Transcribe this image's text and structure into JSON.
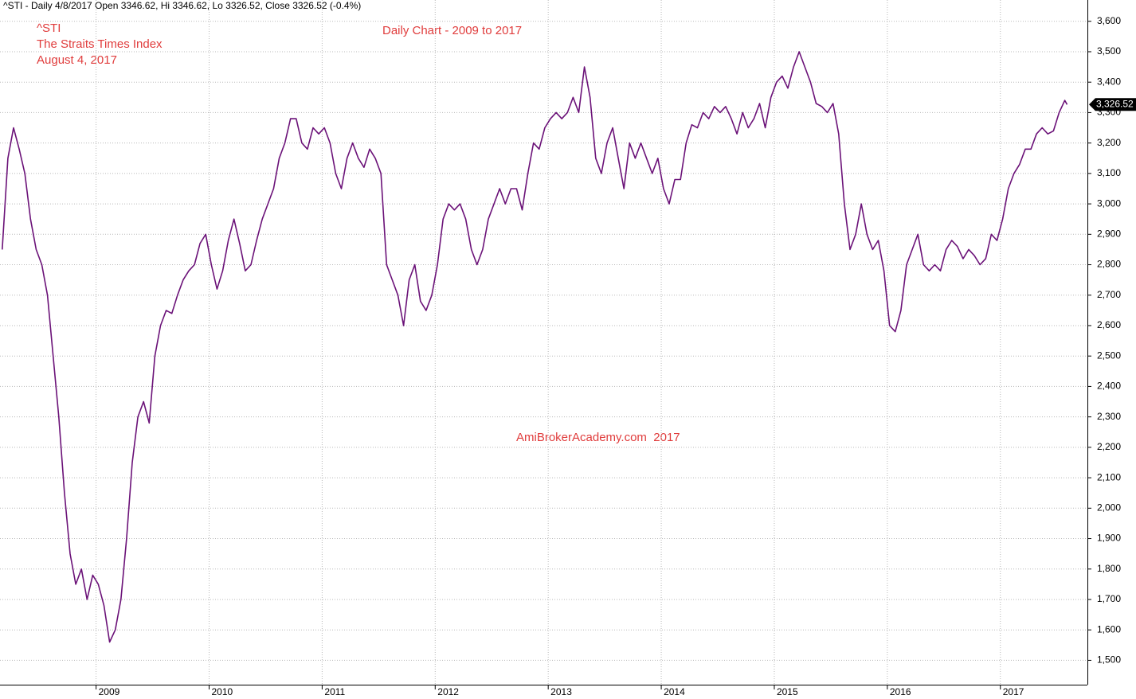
{
  "chart_data": {
    "type": "line",
    "header": "^STI - Daily 4/8/2017 Open 3346.62, Hi 3346.62, Lo 3326.52, Close 3326.52 (-0.4%)",
    "title": "Daily Chart - 2009 to 2017",
    "annotations": [
      "^STI",
      "The Straits Times Index",
      "August 4, 2017"
    ],
    "watermark": "AmiBrokerAcademy.com  2017",
    "color": "#6b1278",
    "grid": true,
    "xlim": [
      2008.15,
      2017.77
    ],
    "xticks": [
      2009,
      2010,
      2011,
      2012,
      2013,
      2014,
      2015,
      2016,
      2017
    ],
    "ylim": [
      1420,
      3670
    ],
    "yticks": [
      {
        "value": 1500,
        "label": "1,500"
      },
      {
        "value": 1600,
        "label": "1,600"
      },
      {
        "value": 1700,
        "label": "1,700"
      },
      {
        "value": 1800,
        "label": "1,800"
      },
      {
        "value": 1900,
        "label": "1,900"
      },
      {
        "value": 2000,
        "label": "2,000"
      },
      {
        "value": 2100,
        "label": "2,100"
      },
      {
        "value": 2200,
        "label": "2,200"
      },
      {
        "value": 2300,
        "label": "2,300"
      },
      {
        "value": 2400,
        "label": "2,400"
      },
      {
        "value": 2500,
        "label": "2,500"
      },
      {
        "value": 2600,
        "label": "2,600"
      },
      {
        "value": 2700,
        "label": "2,700"
      },
      {
        "value": 2800,
        "label": "2,800"
      },
      {
        "value": 2900,
        "label": "2,900"
      },
      {
        "value": 3000,
        "label": "3,000"
      },
      {
        "value": 3100,
        "label": "3,100"
      },
      {
        "value": 3200,
        "label": "3,200"
      },
      {
        "value": 3300,
        "label": "3,300"
      },
      {
        "value": 3400,
        "label": "3,400"
      },
      {
        "value": 3500,
        "label": "3,500"
      },
      {
        "value": 3600,
        "label": "3,600"
      }
    ],
    "last_price_label": {
      "value": 3326.52,
      "label": "3,326.52"
    },
    "x": [
      2008.17,
      2008.22,
      2008.27,
      2008.32,
      2008.37,
      2008.42,
      2008.47,
      2008.52,
      2008.57,
      2008.62,
      2008.67,
      2008.72,
      2008.77,
      2008.82,
      2008.87,
      2008.92,
      2008.97,
      2009.02,
      2009.07,
      2009.12,
      2009.17,
      2009.22,
      2009.27,
      2009.32,
      2009.37,
      2009.42,
      2009.47,
      2009.52,
      2009.57,
      2009.62,
      2009.67,
      2009.72,
      2009.77,
      2009.82,
      2009.87,
      2009.92,
      2009.97,
      2010.02,
      2010.07,
      2010.12,
      2010.17,
      2010.22,
      2010.27,
      2010.32,
      2010.37,
      2010.42,
      2010.47,
      2010.52,
      2010.57,
      2010.62,
      2010.67,
      2010.72,
      2010.77,
      2010.82,
      2010.87,
      2010.92,
      2010.97,
      2011.02,
      2011.07,
      2011.12,
      2011.17,
      2011.22,
      2011.27,
      2011.32,
      2011.37,
      2011.42,
      2011.47,
      2011.52,
      2011.57,
      2011.62,
      2011.67,
      2011.72,
      2011.77,
      2011.82,
      2011.87,
      2011.92,
      2011.97,
      2012.02,
      2012.07,
      2012.12,
      2012.17,
      2012.22,
      2012.27,
      2012.32,
      2012.37,
      2012.42,
      2012.47,
      2012.52,
      2012.57,
      2012.62,
      2012.67,
      2012.72,
      2012.77,
      2012.82,
      2012.87,
      2012.92,
      2012.97,
      2013.02,
      2013.07,
      2013.12,
      2013.17,
      2013.22,
      2013.27,
      2013.32,
      2013.37,
      2013.42,
      2013.47,
      2013.52,
      2013.57,
      2013.62,
      2013.67,
      2013.72,
      2013.77,
      2013.82,
      2013.87,
      2013.92,
      2013.97,
      2014.02,
      2014.07,
      2014.12,
      2014.17,
      2014.22,
      2014.27,
      2014.32,
      2014.37,
      2014.42,
      2014.47,
      2014.52,
      2014.57,
      2014.62,
      2014.67,
      2014.72,
      2014.77,
      2014.82,
      2014.87,
      2014.92,
      2014.97,
      2015.02,
      2015.07,
      2015.12,
      2015.17,
      2015.22,
      2015.27,
      2015.32,
      2015.37,
      2015.42,
      2015.47,
      2015.52,
      2015.57,
      2015.62,
      2015.67,
      2015.72,
      2015.77,
      2015.82,
      2015.87,
      2015.92,
      2015.97,
      2016.02,
      2016.07,
      2016.12,
      2016.17,
      2016.22,
      2016.27,
      2016.32,
      2016.37,
      2016.42,
      2016.47,
      2016.52,
      2016.57,
      2016.62,
      2016.67,
      2016.72,
      2016.77,
      2016.82,
      2016.87,
      2016.92,
      2016.97,
      2017.02,
      2017.07,
      2017.12,
      2017.17,
      2017.22,
      2017.27,
      2017.32,
      2017.37,
      2017.42,
      2017.47,
      2017.52,
      2017.57,
      2017.59
    ],
    "values": [
      2850,
      3150,
      3250,
      3180,
      3100,
      2950,
      2850,
      2800,
      2700,
      2500,
      2300,
      2050,
      1850,
      1750,
      1800,
      1700,
      1780,
      1750,
      1680,
      1560,
      1600,
      1700,
      1900,
      2150,
      2300,
      2350,
      2280,
      2500,
      2600,
      2650,
      2640,
      2700,
      2750,
      2780,
      2800,
      2870,
      2900,
      2800,
      2720,
      2780,
      2880,
      2950,
      2870,
      2780,
      2800,
      2880,
      2950,
      3000,
      3050,
      3150,
      3200,
      3280,
      3280,
      3200,
      3180,
      3250,
      3230,
      3250,
      3200,
      3100,
      3050,
      3150,
      3200,
      3150,
      3120,
      3180,
      3150,
      3100,
      2800,
      2750,
      2700,
      2600,
      2750,
      2800,
      2680,
      2650,
      2700,
      2800,
      2950,
      3000,
      2980,
      3000,
      2950,
      2850,
      2800,
      2850,
      2950,
      3000,
      3050,
      3000,
      3050,
      3050,
      2980,
      3100,
      3200,
      3180,
      3250,
      3280,
      3300,
      3280,
      3300,
      3350,
      3300,
      3450,
      3350,
      3150,
      3100,
      3200,
      3250,
      3150,
      3050,
      3200,
      3150,
      3200,
      3150,
      3100,
      3150,
      3050,
      3000,
      3080,
      3080,
      3200,
      3260,
      3250,
      3300,
      3280,
      3320,
      3300,
      3320,
      3280,
      3230,
      3300,
      3250,
      3280,
      3330,
      3250,
      3350,
      3400,
      3420,
      3380,
      3450,
      3500,
      3450,
      3400,
      3330,
      3320,
      3300,
      3330,
      3230,
      3000,
      2850,
      2900,
      3000,
      2900,
      2850,
      2880,
      2780,
      2600,
      2580,
      2650,
      2800,
      2850,
      2900,
      2800,
      2780,
      2800,
      2780,
      2850,
      2880,
      2860,
      2820,
      2850,
      2830,
      2800,
      2820,
      2900,
      2880,
      2950,
      3050,
      3100,
      3130,
      3180,
      3180,
      3230,
      3250,
      3230,
      3240,
      3300,
      3340,
      3326.52
    ]
  }
}
